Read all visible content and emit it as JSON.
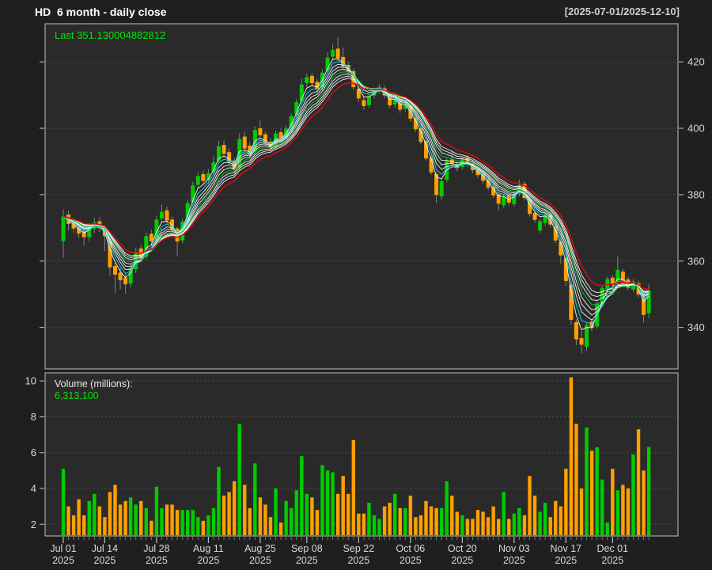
{
  "header": {
    "title": "HD  6 month - daily close",
    "range": "[2025-07-01/2025-12-10]"
  },
  "price_panel": {
    "last_text": "Last 351.130004882812",
    "y_ticks": [
      340,
      360,
      380,
      400,
      420
    ]
  },
  "volume_panel": {
    "label": "Volume (millions):",
    "value": "6,313,100",
    "y_ticks": [
      2,
      4,
      6,
      8,
      10
    ]
  },
  "colors": {
    "page_bg": "#1f1f1f",
    "panel_bg": "#2a2a2a",
    "border": "#c0c0c0",
    "grid": "#383838",
    "grid_dotted": "#565656",
    "axis_text": "#d8d8d8",
    "tick": "#aaaaaa",
    "up": "#00cc00",
    "down": "#ffa000",
    "wick": "#808080",
    "ma_white": "#f2f2f2",
    "ma_cyan": "#00d2d2",
    "ma_green": "#00b32c",
    "ma_red": "#cc1111",
    "accent_green": "#00e600"
  },
  "chart_data": {
    "type": "candlestick+volume",
    "symbol": "HD",
    "title": "HD  6 month - daily close",
    "subtitle": "[2025-07-01/2025-12-10]",
    "last_close": 351.130004882812,
    "last_volume": "6,313,100",
    "price_ylim": [
      327.5,
      431.5
    ],
    "volume_ylim": [
      1.35,
      10.45
    ],
    "price_yticks": [
      340,
      360,
      380,
      400,
      420
    ],
    "volume_yticks": [
      2,
      4,
      6,
      8,
      10
    ],
    "x_ticks": [
      {
        "index": 0,
        "line1": "Jul 01",
        "line2": "2025"
      },
      {
        "index": 8,
        "line1": "Jul 14",
        "line2": "2025"
      },
      {
        "index": 18,
        "line1": "Jul 28",
        "line2": "2025"
      },
      {
        "index": 28,
        "line1": "Aug 11",
        "line2": "2025"
      },
      {
        "index": 38,
        "line1": "Aug 25",
        "line2": "2025"
      },
      {
        "index": 47,
        "line1": "Sep 08",
        "line2": "2025"
      },
      {
        "index": 57,
        "line1": "Sep 22",
        "line2": "2025"
      },
      {
        "index": 67,
        "line1": "Oct 06",
        "line2": "2025"
      },
      {
        "index": 77,
        "line1": "Oct 20",
        "line2": "2025"
      },
      {
        "index": 87,
        "line1": "Nov 03",
        "line2": "2025"
      },
      {
        "index": 97,
        "line1": "Nov 17",
        "line2": "2025"
      },
      {
        "index": 106,
        "line1": "Dec 01",
        "line2": "2025"
      }
    ],
    "overlays": {
      "white_ema_periods": [
        3,
        5,
        6,
        7,
        9,
        10,
        11
      ],
      "cyan_ema_period": 4,
      "green_ema_period": 8,
      "red_ema_period": 13
    },
    "dates": [
      "2025-07-01",
      "2025-07-02",
      "2025-07-03",
      "2025-07-07",
      "2025-07-08",
      "2025-07-09",
      "2025-07-10",
      "2025-07-11",
      "2025-07-14",
      "2025-07-15",
      "2025-07-16",
      "2025-07-17",
      "2025-07-18",
      "2025-07-21",
      "2025-07-22",
      "2025-07-23",
      "2025-07-24",
      "2025-07-25",
      "2025-07-28",
      "2025-07-29",
      "2025-07-30",
      "2025-07-31",
      "2025-08-01",
      "2025-08-04",
      "2025-08-05",
      "2025-08-06",
      "2025-08-07",
      "2025-08-08",
      "2025-08-11",
      "2025-08-12",
      "2025-08-13",
      "2025-08-14",
      "2025-08-15",
      "2025-08-18",
      "2025-08-19",
      "2025-08-20",
      "2025-08-21",
      "2025-08-22",
      "2025-08-25",
      "2025-08-26",
      "2025-08-27",
      "2025-08-28",
      "2025-08-29",
      "2025-09-02",
      "2025-09-03",
      "2025-09-04",
      "2025-09-05",
      "2025-09-08",
      "2025-09-09",
      "2025-09-10",
      "2025-09-11",
      "2025-09-12",
      "2025-09-15",
      "2025-09-16",
      "2025-09-17",
      "2025-09-18",
      "2025-09-19",
      "2025-09-22",
      "2025-09-23",
      "2025-09-24",
      "2025-09-25",
      "2025-09-26",
      "2025-09-29",
      "2025-09-30",
      "2025-10-01",
      "2025-10-02",
      "2025-10-03",
      "2025-10-06",
      "2025-10-07",
      "2025-10-08",
      "2025-10-09",
      "2025-10-10",
      "2025-10-13",
      "2025-10-14",
      "2025-10-15",
      "2025-10-16",
      "2025-10-17",
      "2025-10-20",
      "2025-10-21",
      "2025-10-22",
      "2025-10-23",
      "2025-10-24",
      "2025-10-27",
      "2025-10-28",
      "2025-10-29",
      "2025-10-30",
      "2025-10-31",
      "2025-11-03",
      "2025-11-04",
      "2025-11-05",
      "2025-11-06",
      "2025-11-07",
      "2025-11-10",
      "2025-11-11",
      "2025-11-12",
      "2025-11-13",
      "2025-11-14",
      "2025-11-17",
      "2025-11-18",
      "2025-11-19",
      "2025-11-20",
      "2025-11-21",
      "2025-11-24",
      "2025-11-25",
      "2025-11-26",
      "2025-11-28",
      "2025-12-01",
      "2025-12-02",
      "2025-12-03",
      "2025-12-04",
      "2025-12-05",
      "2025-12-08",
      "2025-12-09",
      "2025-12-10"
    ],
    "ohlc": [
      [
        366.0,
        375.6,
        361.0,
        373.4
      ],
      [
        374.0,
        375.2,
        369.3,
        371.2
      ],
      [
        371.5,
        372.8,
        368.5,
        369.8
      ],
      [
        370.3,
        371.5,
        367.0,
        368.3
      ],
      [
        369.0,
        370.2,
        364.5,
        367.2
      ],
      [
        367.2,
        371.5,
        366.0,
        370.3
      ],
      [
        369.8,
        373.0,
        368.5,
        371.6
      ],
      [
        372.0,
        373.2,
        368.8,
        369.9
      ],
      [
        370.0,
        370.8,
        363.0,
        367.5
      ],
      [
        366.0,
        366.8,
        355.5,
        358.1
      ],
      [
        358.5,
        359.5,
        350.5,
        355.9
      ],
      [
        356.5,
        357.8,
        351.5,
        354.2
      ],
      [
        355.0,
        356.2,
        350.2,
        353.0
      ],
      [
        353.2,
        358.9,
        352.0,
        357.8
      ],
      [
        357.5,
        364.0,
        356.4,
        362.8
      ],
      [
        363.8,
        364.9,
        359.8,
        361.0
      ],
      [
        361.3,
        368.6,
        360.4,
        367.5
      ],
      [
        368.2,
        369.4,
        364.8,
        365.9
      ],
      [
        366.2,
        373.6,
        365.3,
        372.5
      ],
      [
        372.8,
        377.0,
        371.8,
        374.8
      ],
      [
        375.3,
        376.4,
        371.2,
        372.2
      ],
      [
        372.5,
        373.4,
        368.5,
        369.6
      ],
      [
        369.8,
        370.3,
        361.5,
        365.9
      ],
      [
        366.2,
        372.8,
        365.4,
        371.8
      ],
      [
        372.2,
        378.5,
        371.4,
        377.5
      ],
      [
        377.8,
        383.9,
        377.0,
        382.8
      ],
      [
        383.0,
        386.8,
        381.8,
        385.6
      ],
      [
        386.2,
        387.3,
        383.2,
        384.1
      ],
      [
        384.4,
        387.8,
        383.3,
        386.5
      ],
      [
        386.8,
        391.5,
        386.0,
        389.8
      ],
      [
        390.2,
        396.2,
        389.4,
        394.6
      ],
      [
        395.0,
        396.4,
        391.3,
        392.3
      ],
      [
        392.8,
        393.9,
        388.9,
        389.9
      ],
      [
        390.3,
        391.2,
        386.4,
        387.6
      ],
      [
        388.3,
        398.5,
        387.5,
        396.8
      ],
      [
        397.5,
        398.9,
        392.8,
        393.9
      ],
      [
        394.8,
        395.8,
        391.0,
        392.2
      ],
      [
        393.0,
        400.6,
        392.2,
        399.5
      ],
      [
        400.0,
        402.3,
        396.6,
        397.9
      ],
      [
        398.2,
        399.0,
        394.6,
        395.6
      ],
      [
        396.0,
        396.9,
        393.0,
        394.0
      ],
      [
        394.3,
        399.3,
        393.5,
        398.4
      ],
      [
        398.8,
        399.9,
        396.1,
        397.1
      ],
      [
        397.4,
        400.8,
        396.5,
        399.9
      ],
      [
        400.3,
        404.5,
        399.4,
        403.7
      ],
      [
        404.1,
        408.8,
        403.3,
        407.9
      ],
      [
        408.3,
        414.9,
        407.5,
        413.2
      ],
      [
        413.6,
        416.5,
        412.4,
        415.4
      ],
      [
        415.8,
        416.6,
        412.5,
        413.6
      ],
      [
        414.0,
        414.9,
        410.8,
        411.9
      ],
      [
        412.3,
        417.8,
        411.5,
        416.8
      ],
      [
        417.2,
        422.9,
        416.4,
        421.3
      ],
      [
        421.6,
        425.4,
        420.7,
        423.6
      ],
      [
        424.0,
        427.5,
        420.3,
        421.1
      ],
      [
        421.5,
        424.4,
        417.8,
        418.7
      ],
      [
        419.1,
        420.0,
        415.9,
        416.9
      ],
      [
        417.2,
        418.1,
        411.5,
        412.4
      ],
      [
        411.9,
        412.8,
        407.8,
        409.0
      ],
      [
        408.5,
        409.4,
        405.6,
        406.7
      ],
      [
        407.0,
        410.4,
        406.2,
        409.6
      ],
      [
        409.9,
        412.0,
        409.0,
        411.2
      ],
      [
        411.5,
        413.3,
        410.4,
        412.4
      ],
      [
        412.0,
        412.9,
        409.0,
        409.9
      ],
      [
        410.3,
        411.0,
        406.0,
        406.9
      ],
      [
        407.2,
        409.6,
        406.3,
        408.8
      ],
      [
        408.4,
        409.1,
        404.6,
        405.6
      ],
      [
        405.9,
        408.0,
        405.0,
        407.1
      ],
      [
        406.7,
        407.5,
        402.0,
        402.9
      ],
      [
        403.2,
        404.0,
        399.0,
        399.7
      ],
      [
        400.0,
        400.8,
        395.2,
        395.9
      ],
      [
        396.2,
        397.0,
        390.3,
        390.9
      ],
      [
        391.2,
        392.0,
        386.0,
        386.7
      ],
      [
        386.2,
        386.9,
        377.5,
        379.9
      ],
      [
        379.5,
        384.9,
        378.4,
        384.1
      ],
      [
        384.5,
        391.0,
        383.7,
        390.2
      ],
      [
        390.6,
        393.5,
        388.3,
        389.3
      ],
      [
        389.0,
        390.0,
        386.9,
        388.0
      ],
      [
        388.3,
        391.6,
        387.5,
        390.7
      ],
      [
        391.0,
        391.9,
        388.3,
        389.2
      ],
      [
        389.5,
        390.3,
        386.5,
        387.4
      ],
      [
        387.7,
        388.5,
        385.0,
        385.9
      ],
      [
        386.2,
        387.0,
        383.4,
        384.2
      ],
      [
        384.5,
        385.3,
        381.3,
        382.1
      ],
      [
        382.4,
        383.2,
        379.0,
        379.8
      ],
      [
        380.1,
        380.9,
        375.2,
        377.3
      ],
      [
        376.8,
        380.2,
        375.9,
        379.4
      ],
      [
        379.8,
        380.4,
        376.7,
        377.6
      ],
      [
        377.2,
        380.8,
        376.4,
        380.0
      ],
      [
        380.3,
        384.6,
        379.5,
        382.9
      ],
      [
        383.3,
        384.0,
        378.3,
        379.0
      ],
      [
        378.6,
        379.4,
        373.4,
        374.2
      ],
      [
        374.5,
        375.3,
        371.5,
        372.4
      ],
      [
        369.2,
        372.8,
        368.4,
        372.0
      ],
      [
        371.5,
        374.5,
        370.7,
        373.8
      ],
      [
        373.9,
        374.7,
        370.2,
        371.0
      ],
      [
        370.4,
        371.1,
        365.4,
        366.2
      ],
      [
        365.8,
        366.6,
        359.2,
        361.7
      ],
      [
        360.8,
        361.6,
        352.5,
        354.0
      ],
      [
        352.8,
        353.5,
        340.8,
        342.3
      ],
      [
        341.6,
        342.4,
        334.6,
        336.4
      ],
      [
        336.8,
        338.9,
        332.2,
        334.8
      ],
      [
        334.2,
        341.5,
        333.0,
        340.7
      ],
      [
        341.8,
        342.6,
        338.8,
        339.9
      ],
      [
        340.3,
        347.9,
        339.6,
        347.2
      ],
      [
        346.8,
        352.6,
        346.0,
        351.9
      ],
      [
        351.5,
        355.4,
        350.8,
        354.6
      ],
      [
        355.0,
        355.8,
        352.4,
        353.2
      ],
      [
        353.5,
        361.5,
        352.8,
        357.3
      ],
      [
        356.8,
        357.6,
        353.3,
        354.1
      ],
      [
        354.5,
        355.3,
        351.1,
        351.9
      ],
      [
        351.4,
        354.6,
        350.6,
        353.8
      ],
      [
        353.3,
        354.1,
        348.9,
        349.9
      ],
      [
        349.2,
        350.0,
        341.5,
        343.8
      ],
      [
        344.3,
        353.2,
        342.8,
        351.13
      ]
    ],
    "volume_millions": [
      5.1,
      3.0,
      2.5,
      3.4,
      2.5,
      3.3,
      3.7,
      3.0,
      2.4,
      3.8,
      4.2,
      3.1,
      3.3,
      3.5,
      3.1,
      3.3,
      2.9,
      2.2,
      4.1,
      2.9,
      3.1,
      3.1,
      2.8,
      2.8,
      2.8,
      2.8,
      2.4,
      2.2,
      2.5,
      2.9,
      5.2,
      3.6,
      3.8,
      4.4,
      7.6,
      4.2,
      2.9,
      5.4,
      3.5,
      3.1,
      2.4,
      4.0,
      2.1,
      3.3,
      2.9,
      3.9,
      5.8,
      3.7,
      3.5,
      2.8,
      5.3,
      5.0,
      4.9,
      3.7,
      4.7,
      3.7,
      6.7,
      2.6,
      2.6,
      3.2,
      2.5,
      2.3,
      3.0,
      3.2,
      3.7,
      2.9,
      2.9,
      3.6,
      2.4,
      2.5,
      3.3,
      3.0,
      2.9,
      2.9,
      4.4,
      3.6,
      2.7,
      2.5,
      2.3,
      2.3,
      2.8,
      2.7,
      2.4,
      3.0,
      2.3,
      3.8,
      2.3,
      2.6,
      2.9,
      2.5,
      4.7,
      3.6,
      2.7,
      3.2,
      2.4,
      3.3,
      3.0,
      5.1,
      10.2,
      7.6,
      4.0,
      7.4,
      6.1,
      6.3,
      4.5,
      2.1,
      5.1,
      3.9,
      4.2,
      4.0,
      5.9,
      7.3,
      5.0,
      6.3131
    ]
  }
}
